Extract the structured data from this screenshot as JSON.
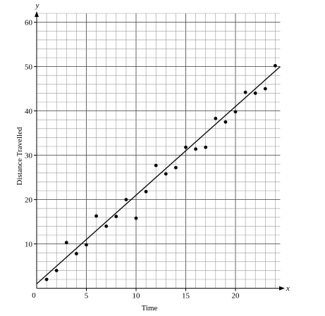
{
  "chart_data": {
    "type": "scatter",
    "xlabel": "Time",
    "ylabel": "Distance Travelled",
    "x_axis_letter": "x",
    "y_axis_letter": "y",
    "origin_label": "0",
    "xlim": [
      0,
      24.5
    ],
    "ylim": [
      0,
      62
    ],
    "x_ticks": [
      5,
      10,
      15,
      20
    ],
    "y_ticks": [
      10,
      20,
      30,
      40,
      50,
      60
    ],
    "minor_grid_step": 1,
    "major_grid_step_y": 2,
    "grid": true,
    "points": [
      {
        "x": 1,
        "y": 2
      },
      {
        "x": 2,
        "y": 4
      },
      {
        "x": 3,
        "y": 10.3
      },
      {
        "x": 4,
        "y": 7.8
      },
      {
        "x": 5,
        "y": 9.8
      },
      {
        "x": 6,
        "y": 16.3
      },
      {
        "x": 7,
        "y": 14
      },
      {
        "x": 8,
        "y": 16.2
      },
      {
        "x": 9,
        "y": 20
      },
      {
        "x": 10,
        "y": 15.8
      },
      {
        "x": 11,
        "y": 21.8
      },
      {
        "x": 12,
        "y": 27.7
      },
      {
        "x": 13,
        "y": 25.8
      },
      {
        "x": 14,
        "y": 27.2
      },
      {
        "x": 15,
        "y": 31.8
      },
      {
        "x": 16,
        "y": 31.4
      },
      {
        "x": 17,
        "y": 31.8
      },
      {
        "x": 18,
        "y": 38.3
      },
      {
        "x": 19,
        "y": 37.5
      },
      {
        "x": 20,
        "y": 39.8
      },
      {
        "x": 21,
        "y": 44.2
      },
      {
        "x": 22,
        "y": 44
      },
      {
        "x": 23,
        "y": 45
      },
      {
        "x": 24,
        "y": 50.2
      }
    ],
    "trend_line": {
      "x0": 0,
      "y0": 1,
      "x1": 24.5,
      "y1": 50
    }
  }
}
